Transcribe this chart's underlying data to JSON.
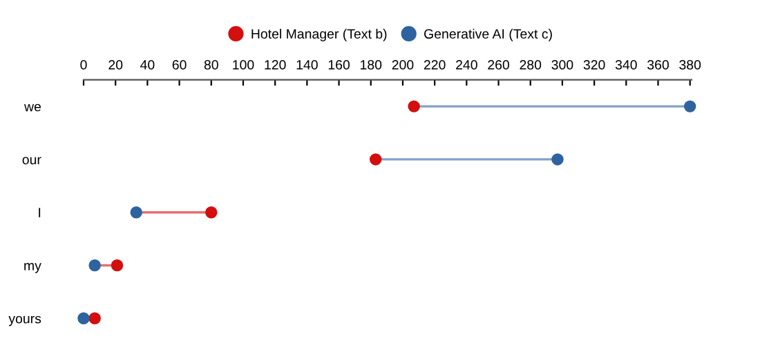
{
  "chart_data": {
    "type": "scatter",
    "orientation": "horizontal",
    "categories": [
      "we",
      "our",
      "I",
      "my",
      "yours"
    ],
    "series": [
      {
        "name": "Hotel Manager (Text b)",
        "color": "#d40f0f",
        "values": [
          207,
          183,
          80,
          21,
          7
        ]
      },
      {
        "name": "Generative AI (Text c)",
        "color": "#2e63a0",
        "values": [
          380,
          297,
          33,
          7,
          0
        ]
      }
    ],
    "xlim": [
      0,
      381
    ],
    "xticks": [
      0,
      20,
      40,
      60,
      80,
      100,
      120,
      140,
      160,
      180,
      200,
      220,
      240,
      260,
      280,
      300,
      320,
      340,
      360,
      380
    ],
    "marker": "circle",
    "legend": "top",
    "grid": false
  }
}
